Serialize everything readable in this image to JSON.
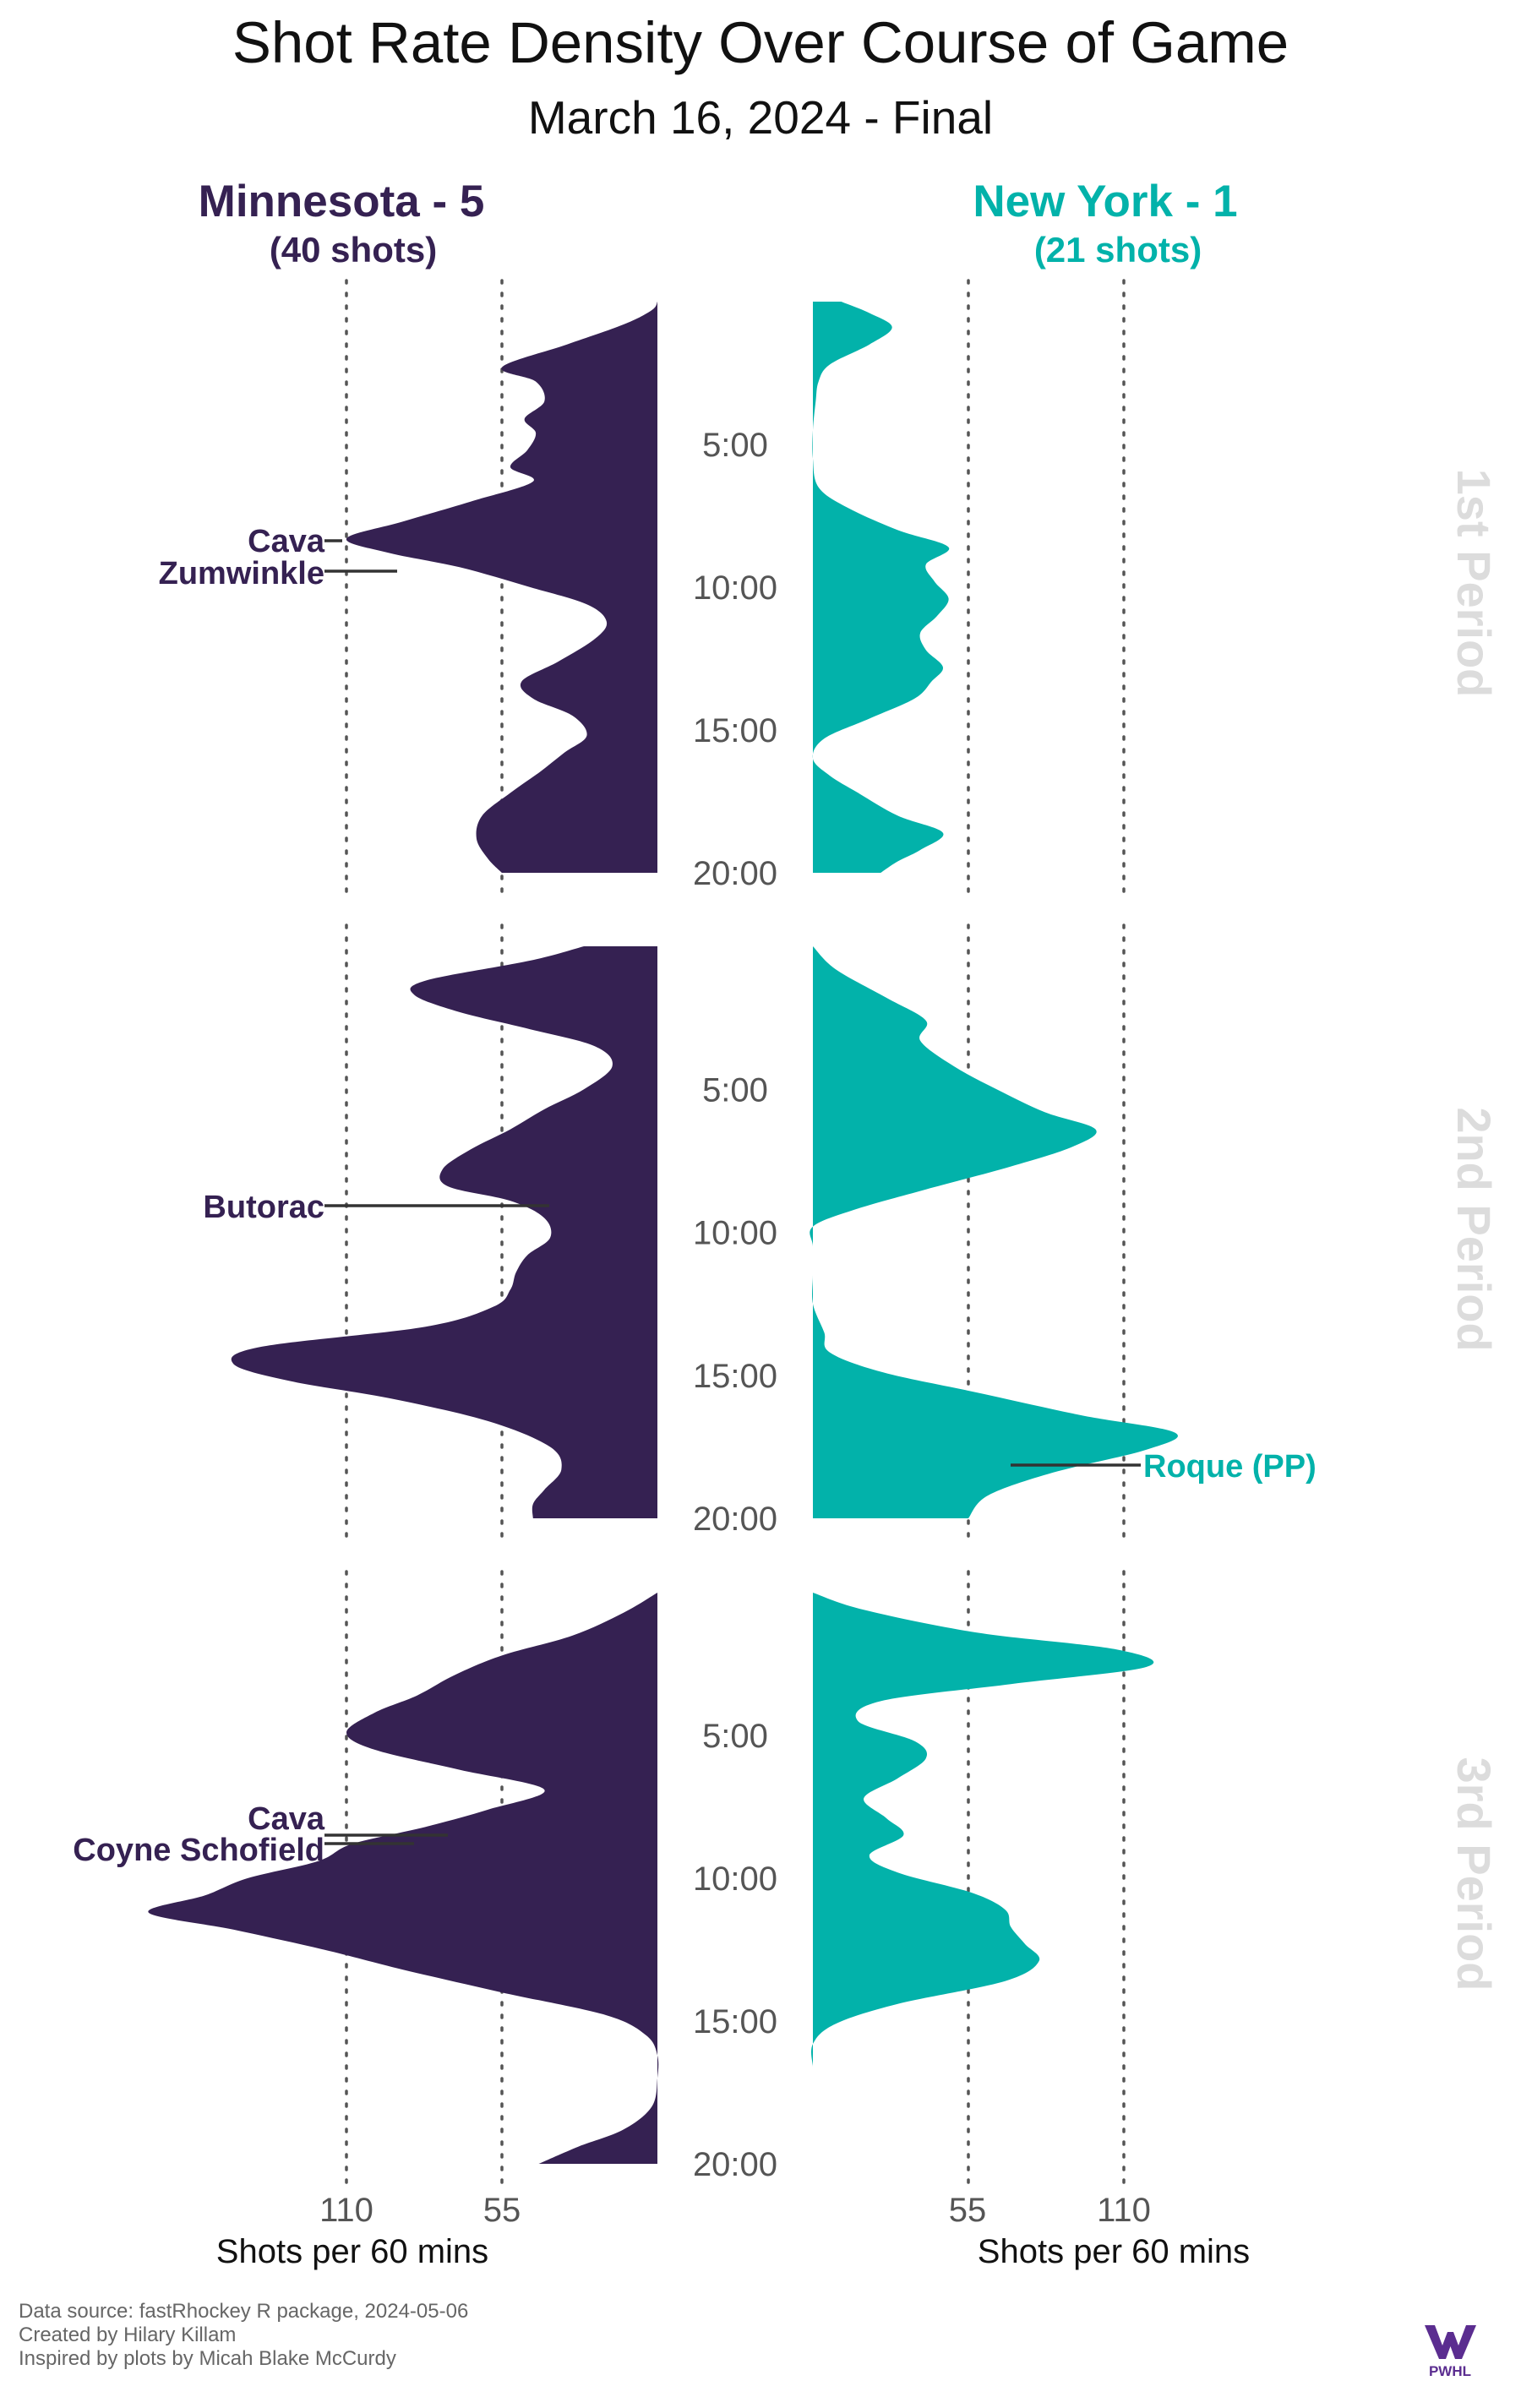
{
  "title": "Shot Rate Density Over Course of Game",
  "subtitle": "March 16, 2024 - Final",
  "teams": {
    "home": {
      "name": "Minnesota - 5",
      "shots_label": "(40 shots)",
      "color": "#352152"
    },
    "away": {
      "name": "New York - 1",
      "shots_label": "(21 shots)",
      "color": "#02B2AA"
    }
  },
  "period_labels": [
    "1st Period",
    "2nd Period",
    "3rd Period"
  ],
  "time_labels": [
    "5:00",
    "10:00",
    "15:00",
    "20:00"
  ],
  "axis": {
    "left_ticks": [
      "110",
      "55"
    ],
    "right_ticks": [
      "55",
      "110"
    ],
    "left_title": "Shots per 60 mins",
    "right_title": "Shots per 60 mins"
  },
  "caption": {
    "line1": "Data source: fastRhockey R package, 2024-05-06",
    "line2": "Created by Hilary Killam",
    "line3": "Inspired by plots by Micah Blake McCurdy"
  },
  "logo": {
    "text": "PWHL"
  },
  "chart_data": {
    "type": "area",
    "x_unit": "minutes into period",
    "value_unit": "Shots per 60 mins",
    "xlim": [
      0,
      20
    ],
    "value_lim": [
      0,
      110
    ],
    "periods": [
      {
        "label": "1st Period",
        "series": [
          {
            "name": "Minnesota - 5",
            "points": [
              [
                0,
                0
              ],
              [
                0.3,
                2
              ],
              [
                0.8,
                12
              ],
              [
                1.5,
                32
              ],
              [
                2.3,
                55
              ],
              [
                2.8,
                43
              ],
              [
                3.5,
                40
              ],
              [
                4.1,
                47
              ],
              [
                4.6,
                43
              ],
              [
                5.2,
                46
              ],
              [
                5.8,
                52
              ],
              [
                6.3,
                44
              ],
              [
                7.0,
                66
              ],
              [
                7.7,
                90
              ],
              [
                8.3,
                110
              ],
              [
                8.8,
                95
              ],
              [
                9.3,
                70
              ],
              [
                10.0,
                45
              ],
              [
                10.6,
                25
              ],
              [
                11.2,
                18
              ],
              [
                11.8,
                22
              ],
              [
                12.6,
                35
              ],
              [
                13.3,
                48
              ],
              [
                13.9,
                44
              ],
              [
                14.5,
                30
              ],
              [
                15.2,
                25
              ],
              [
                15.8,
                33
              ],
              [
                16.5,
                42
              ],
              [
                17.2,
                52
              ],
              [
                18.0,
                62
              ],
              [
                18.8,
                64
              ],
              [
                19.5,
                60
              ],
              [
                20.0,
                55
              ]
            ]
          },
          {
            "name": "New York - 1",
            "points": [
              [
                0,
                10
              ],
              [
                0.4,
                20
              ],
              [
                0.9,
                28
              ],
              [
                1.5,
                20
              ],
              [
                2.2,
                6
              ],
              [
                2.8,
                2
              ],
              [
                3.5,
                1
              ],
              [
                4.5,
                0
              ],
              [
                5.5,
                0
              ],
              [
                6.5,
                2
              ],
              [
                7.2,
                12
              ],
              [
                8.0,
                30
              ],
              [
                8.6,
                48
              ],
              [
                9.2,
                40
              ],
              [
                9.8,
                43
              ],
              [
                10.4,
                48
              ],
              [
                11.0,
                44
              ],
              [
                11.6,
                38
              ],
              [
                12.2,
                40
              ],
              [
                12.8,
                46
              ],
              [
                13.3,
                42
              ],
              [
                13.9,
                36
              ],
              [
                14.6,
                20
              ],
              [
                15.3,
                4
              ],
              [
                16.0,
                0
              ],
              [
                16.6,
                6
              ],
              [
                17.2,
                16
              ],
              [
                18.0,
                30
              ],
              [
                18.6,
                46
              ],
              [
                19.2,
                38
              ],
              [
                19.6,
                30
              ],
              [
                20.0,
                24
              ]
            ]
          }
        ]
      },
      {
        "label": "2nd Period",
        "series": [
          {
            "name": "Minnesota - 5",
            "points": [
              [
                0,
                26
              ],
              [
                0.5,
                45
              ],
              [
                1.2,
                82
              ],
              [
                1.7,
                86
              ],
              [
                2.3,
                70
              ],
              [
                2.9,
                45
              ],
              [
                3.5,
                22
              ],
              [
                4.2,
                16
              ],
              [
                5.0,
                26
              ],
              [
                5.7,
                40
              ],
              [
                6.4,
                52
              ],
              [
                7.1,
                66
              ],
              [
                7.8,
                76
              ],
              [
                8.4,
                74
              ],
              [
                8.9,
                52
              ],
              [
                9.5,
                40
              ],
              [
                10.2,
                38
              ],
              [
                10.8,
                46
              ],
              [
                11.4,
                50
              ],
              [
                12.0,
                52
              ],
              [
                12.6,
                58
              ],
              [
                13.3,
                82
              ],
              [
                14.0,
                140
              ],
              [
                14.6,
                150
              ],
              [
                15.2,
                130
              ],
              [
                15.8,
                95
              ],
              [
                16.6,
                60
              ],
              [
                17.5,
                38
              ],
              [
                18.3,
                34
              ],
              [
                19.0,
                40
              ],
              [
                19.5,
                44
              ],
              [
                20.0,
                44
              ]
            ]
          },
          {
            "name": "New York - 1",
            "points": [
              [
                0,
                0
              ],
              [
                0.8,
                8
              ],
              [
                1.8,
                26
              ],
              [
                2.6,
                40
              ],
              [
                3.3,
                38
              ],
              [
                4.2,
                50
              ],
              [
                5.0,
                65
              ],
              [
                5.8,
                82
              ],
              [
                6.4,
                100
              ],
              [
                7.0,
                92
              ],
              [
                7.7,
                70
              ],
              [
                8.5,
                40
              ],
              [
                9.2,
                15
              ],
              [
                9.8,
                0
              ],
              [
                10.5,
                0
              ],
              [
                11.5,
                0
              ],
              [
                12.5,
                0
              ],
              [
                13.5,
                4
              ],
              [
                14.2,
                6
              ],
              [
                14.9,
                25
              ],
              [
                15.6,
                58
              ],
              [
                16.4,
                95
              ],
              [
                17.0,
                128
              ],
              [
                17.6,
                118
              ],
              [
                18.4,
                85
              ],
              [
                19.2,
                62
              ],
              [
                20.0,
                55
              ]
            ]
          }
        ]
      },
      {
        "label": "3rd Period",
        "series": [
          {
            "name": "Minnesota - 5",
            "points": [
              [
                0,
                0
              ],
              [
                0.7,
                12
              ],
              [
                1.5,
                30
              ],
              [
                2.2,
                55
              ],
              [
                2.9,
                72
              ],
              [
                3.6,
                85
              ],
              [
                4.2,
                100
              ],
              [
                4.9,
                110
              ],
              [
                5.5,
                100
              ],
              [
                6.2,
                70
              ],
              [
                6.9,
                40
              ],
              [
                7.6,
                60
              ],
              [
                8.2,
                82
              ],
              [
                8.8,
                108
              ],
              [
                9.4,
                120
              ],
              [
                10.0,
                145
              ],
              [
                10.6,
                160
              ],
              [
                11.2,
                180
              ],
              [
                11.8,
                150
              ],
              [
                12.5,
                118
              ],
              [
                13.2,
                90
              ],
              [
                14.0,
                55
              ],
              [
                14.8,
                18
              ],
              [
                15.5,
                4
              ],
              [
                16.2,
                0
              ],
              [
                17.0,
                0
              ],
              [
                18.0,
                2
              ],
              [
                18.8,
                12
              ],
              [
                19.4,
                28
              ],
              [
                20.0,
                42
              ]
            ]
          },
          {
            "name": "New York - 1",
            "points": [
              [
                0,
                0
              ],
              [
                0.6,
                18
              ],
              [
                1.4,
                58
              ],
              [
                2.0,
                108
              ],
              [
                2.6,
                118
              ],
              [
                3.2,
                70
              ],
              [
                3.8,
                24
              ],
              [
                4.5,
                16
              ],
              [
                5.2,
                36
              ],
              [
                5.8,
                40
              ],
              [
                6.5,
                30
              ],
              [
                7.2,
                18
              ],
              [
                7.9,
                26
              ],
              [
                8.5,
                32
              ],
              [
                9.2,
                20
              ],
              [
                9.8,
                30
              ],
              [
                10.5,
                56
              ],
              [
                11.1,
                68
              ],
              [
                11.7,
                70
              ],
              [
                12.3,
                75
              ],
              [
                12.9,
                80
              ],
              [
                13.6,
                68
              ],
              [
                14.4,
                30
              ],
              [
                15.1,
                8
              ],
              [
                15.8,
                0
              ],
              [
                16.6,
                0
              ]
            ]
          }
        ]
      }
    ],
    "annotations": [
      {
        "period": "1st Period",
        "team": "Minnesota - 5",
        "text": "Cava"
      },
      {
        "period": "1st Period",
        "team": "Minnesota - 5",
        "text": "Zumwinkle"
      },
      {
        "period": "2nd Period",
        "team": "Minnesota - 5",
        "text": "Butorac"
      },
      {
        "period": "2nd Period",
        "team": "New York - 1",
        "text": "Roque (PP)"
      },
      {
        "period": "3rd Period",
        "team": "Minnesota - 5",
        "text": "Cava"
      },
      {
        "period": "3rd Period",
        "team": "Minnesota - 5",
        "text": "Coyne Schofield"
      }
    ]
  }
}
